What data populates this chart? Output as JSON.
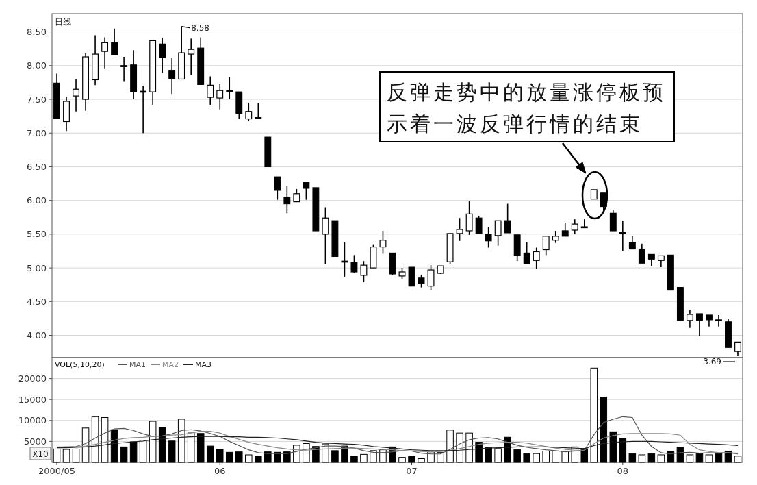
{
  "chart_data": [
    {
      "type": "candlestick",
      "title": "日线",
      "categories": [
        "2000/05",
        null,
        null,
        null,
        null,
        null,
        null,
        null,
        null,
        null,
        null,
        null,
        null,
        null,
        null,
        null,
        null,
        "06",
        null,
        null,
        null,
        null,
        null,
        null,
        null,
        null,
        null,
        null,
        null,
        null,
        null,
        null,
        null,
        null,
        null,
        null,
        null,
        "07",
        null,
        null,
        null,
        null,
        null,
        null,
        null,
        null,
        null,
        null,
        null,
        null,
        null,
        null,
        null,
        null,
        null,
        null,
        null,
        null,
        null,
        "08",
        null,
        null,
        null,
        null,
        null,
        null,
        null,
        null,
        null,
        null,
        null,
        null
      ],
      "ohlc": [
        [
          7.74,
          7.88,
          7.22,
          7.22
        ],
        [
          7.17,
          7.53,
          7.03,
          7.47
        ],
        [
          7.55,
          7.8,
          7.32,
          7.65
        ],
        [
          7.5,
          8.18,
          7.33,
          8.13
        ],
        [
          7.79,
          8.45,
          7.71,
          8.17
        ],
        [
          8.21,
          8.42,
          7.96,
          8.34
        ],
        [
          8.34,
          8.55,
          8.16,
          8.16
        ],
        [
          8.0,
          8.13,
          7.77,
          7.99
        ],
        [
          8.01,
          8.23,
          7.5,
          7.61
        ],
        [
          7.62,
          7.7,
          7.0,
          7.61
        ],
        [
          7.61,
          8.37,
          7.42,
          8.37
        ],
        [
          8.32,
          8.41,
          7.89,
          8.12
        ],
        [
          7.93,
          8.12,
          7.58,
          7.81
        ],
        [
          7.8,
          8.58,
          7.8,
          8.19
        ],
        [
          8.17,
          8.4,
          7.86,
          8.24
        ],
        [
          8.26,
          8.42,
          7.72,
          7.72
        ],
        [
          7.53,
          7.84,
          7.42,
          7.71
        ],
        [
          7.52,
          7.73,
          7.35,
          7.63
        ],
        [
          7.63,
          7.83,
          7.5,
          7.62
        ],
        [
          7.61,
          7.61,
          7.21,
          7.29
        ],
        [
          7.21,
          7.45,
          7.18,
          7.32
        ],
        [
          7.23,
          7.44,
          7.22,
          7.22
        ],
        [
          6.94,
          6.94,
          6.5,
          6.5
        ],
        [
          6.35,
          6.35,
          6.01,
          6.15
        ],
        [
          6.05,
          6.21,
          5.81,
          5.95
        ],
        [
          5.98,
          6.17,
          5.98,
          6.1
        ],
        [
          6.27,
          6.27,
          6.01,
          6.18
        ],
        [
          6.19,
          6.19,
          5.55,
          5.55
        ],
        [
          5.5,
          5.9,
          5.06,
          5.74
        ],
        [
          5.7,
          5.7,
          5.17,
          5.17
        ],
        [
          5.1,
          5.38,
          4.87,
          5.09
        ],
        [
          5.08,
          5.19,
          4.93,
          4.94
        ],
        [
          4.89,
          5.1,
          4.79,
          5.04
        ],
        [
          5.0,
          5.35,
          5.0,
          5.31
        ],
        [
          5.31,
          5.55,
          5.21,
          5.41
        ],
        [
          5.22,
          5.22,
          4.89,
          4.91
        ],
        [
          4.88,
          5.0,
          4.84,
          4.94
        ],
        [
          5.01,
          5.01,
          4.73,
          4.73
        ],
        [
          4.85,
          4.9,
          4.71,
          4.77
        ],
        [
          4.73,
          5.04,
          4.67,
          4.97
        ],
        [
          4.92,
          5.03,
          4.91,
          5.03
        ],
        [
          5.09,
          5.51,
          5.06,
          5.51
        ],
        [
          5.51,
          5.74,
          5.4,
          5.57
        ],
        [
          5.55,
          5.99,
          5.49,
          5.8
        ],
        [
          5.74,
          5.77,
          5.51,
          5.51
        ],
        [
          5.5,
          5.6,
          5.3,
          5.4
        ],
        [
          5.48,
          5.7,
          5.33,
          5.7
        ],
        [
          5.7,
          5.95,
          5.52,
          5.52
        ],
        [
          5.49,
          5.49,
          5.1,
          5.18
        ],
        [
          5.22,
          5.38,
          5.06,
          5.06
        ],
        [
          5.11,
          5.3,
          4.99,
          5.24
        ],
        [
          5.27,
          5.47,
          5.19,
          5.47
        ],
        [
          5.41,
          5.55,
          5.37,
          5.47
        ],
        [
          5.55,
          5.67,
          5.47,
          5.47
        ],
        [
          5.56,
          5.72,
          5.5,
          5.65
        ],
        [
          5.61,
          5.72,
          5.6,
          5.6
        ],
        [
          6.02,
          6.16,
          6.02,
          6.16
        ],
        [
          6.11,
          6.11,
          5.82,
          5.91
        ],
        [
          5.81,
          5.86,
          5.55,
          5.55
        ],
        [
          5.53,
          5.7,
          5.25,
          5.52
        ],
        [
          5.38,
          5.47,
          5.28,
          5.28
        ],
        [
          5.28,
          5.36,
          5.07,
          5.07
        ],
        [
          5.2,
          5.2,
          5.03,
          5.13
        ],
        [
          5.11,
          5.18,
          5.01,
          5.18
        ],
        [
          5.19,
          5.19,
          4.67,
          4.67
        ],
        [
          4.71,
          4.71,
          4.22,
          4.22
        ],
        [
          4.22,
          4.38,
          4.11,
          4.31
        ],
        [
          4.32,
          4.32,
          3.99,
          4.22
        ],
        [
          4.3,
          4.3,
          4.13,
          4.23
        ],
        [
          4.23,
          4.3,
          4.13,
          4.22
        ],
        [
          4.2,
          4.25,
          3.82,
          3.82
        ],
        [
          3.76,
          3.9,
          3.69,
          3.9
        ]
      ],
      "ylim": [
        3.67,
        8.77
      ],
      "yticks": [
        {
          "value": 4,
          "label": "4.00"
        },
        {
          "value": 4.5,
          "label": "4.50"
        },
        {
          "value": 5,
          "label": "5.00"
        },
        {
          "value": 5.5,
          "label": "5.50"
        },
        {
          "value": 6,
          "label": "6.00"
        },
        {
          "value": 6.5,
          "label": "6.50"
        },
        {
          "value": 7,
          "label": "7.00"
        },
        {
          "value": 7.5,
          "label": "7.50"
        },
        {
          "value": 8,
          "label": "8.00"
        },
        {
          "value": 8.5,
          "label": "8.50"
        }
      ],
      "grid": "y",
      "tick_labels": "y",
      "annotations": [
        "8.58",
        "3.69",
        "反弹走势中的放量涨停板预示着一波反弹行情的结束"
      ]
    },
    {
      "type": "bar",
      "categories": [
        "2000/05",
        null,
        null,
        null,
        null,
        null,
        null,
        null,
        null,
        null,
        null,
        null,
        null,
        null,
        null,
        null,
        null,
        "06",
        null,
        null,
        null,
        null,
        null,
        null,
        null,
        null,
        null,
        null,
        null,
        null,
        null,
        null,
        null,
        null,
        null,
        null,
        null,
        "07",
        null,
        null,
        null,
        null,
        null,
        null,
        null,
        null,
        null,
        null,
        null,
        null,
        null,
        null,
        null,
        null,
        null,
        null,
        null,
        null,
        null,
        "08",
        null,
        null,
        null,
        null,
        null,
        null,
        null,
        null,
        null,
        null,
        null,
        null
      ],
      "series": [
        {
          "type": "bar",
          "values": [
            3200,
            3100,
            3200,
            8200,
            10900,
            10700,
            7800,
            3700,
            4900,
            5300,
            9800,
            8400,
            5100,
            10300,
            7200,
            6900,
            3900,
            3100,
            2400,
            2500,
            1800,
            1500,
            2500,
            2400,
            2500,
            4100,
            4500,
            3800,
            4400,
            2800,
            3900,
            1500,
            1900,
            2800,
            3000,
            3700,
            1200,
            1400,
            900,
            2500,
            2400,
            7700,
            7000,
            7000,
            4800,
            3500,
            3300,
            6000,
            3000,
            2100,
            2100,
            2700,
            2700,
            2700,
            3700,
            3300,
            22500,
            15600,
            7300,
            5800,
            2100,
            1800,
            2100,
            1800,
            2700,
            3600,
            1800,
            2100,
            1800,
            2100,
            2700,
            1500
          ],
          "colors": [
            "#ffffff",
            "#ffffff",
            "#ffffff",
            "#ffffff",
            "#ffffff",
            "#ffffff",
            "#000000",
            "#000000",
            "#000000",
            "#ffffff",
            "#ffffff",
            "#000000",
            "#000000",
            "#ffffff",
            "#ffffff",
            "#000000",
            "#000000",
            "#000000",
            "#000000",
            "#000000",
            "#ffffff",
            "#000000",
            "#000000",
            "#000000",
            "#000000",
            "#ffffff",
            "#ffffff",
            "#000000",
            "#ffffff",
            "#000000",
            "#000000",
            "#000000",
            "#ffffff",
            "#ffffff",
            "#ffffff",
            "#000000",
            "#ffffff",
            "#000000",
            "#ffffff",
            "#ffffff",
            "#ffffff",
            "#ffffff",
            "#ffffff",
            "#ffffff",
            "#000000",
            "#000000",
            "#ffffff",
            "#000000",
            "#000000",
            "#000000",
            "#ffffff",
            "#ffffff",
            "#ffffff",
            "#ffffff",
            "#ffffff",
            "#000000",
            "#ffffff",
            "#000000",
            "#000000",
            "#000000",
            "#000000",
            "#ffffff",
            "#000000",
            "#ffffff",
            "#000000",
            "#000000",
            "#ffffff",
            "#000000",
            "#ffffff",
            "#000000",
            "#000000",
            "#ffffff"
          ]
        },
        {
          "type": "line",
          "name": "MA1",
          "color": "#555555",
          "values": [
            3600,
            3700,
            3800,
            4500,
            5800,
            7000,
            8000,
            8100,
            7600,
            6800,
            6200,
            6300,
            6800,
            7600,
            7800,
            7500,
            6900,
            6200,
            5000,
            4000,
            3000,
            2300,
            2100,
            2100,
            2100,
            2600,
            3100,
            3500,
            3900,
            3900,
            3800,
            3400,
            2800,
            2400,
            2300,
            2500,
            2800,
            2700,
            2200,
            2000,
            2000,
            3100,
            4400,
            5400,
            5800,
            5900,
            5600,
            4800,
            4100,
            3600,
            3300,
            3000,
            2800,
            2500,
            2700,
            2900,
            6600,
            9500,
            10300,
            10900,
            10700,
            6500,
            3800,
            2300,
            2000,
            2300,
            2400,
            2200,
            2300,
            2200,
            2300,
            2000
          ]
        },
        {
          "type": "line",
          "name": "MA2",
          "color": "#888888",
          "values": [
            3700,
            3700,
            3700,
            3900,
            4300,
            4800,
            5300,
            5700,
            5900,
            6000,
            6200,
            6300,
            6500,
            6600,
            7000,
            7400,
            7400,
            7000,
            6200,
            5500,
            4800,
            4300,
            3900,
            3500,
            3200,
            3000,
            2900,
            3100,
            3200,
            3300,
            3400,
            3400,
            3300,
            3200,
            3100,
            3000,
            2800,
            2700,
            2600,
            2500,
            2600,
            2900,
            3300,
            3800,
            4300,
            4600,
            4700,
            4800,
            4800,
            4600,
            4200,
            3800,
            3400,
            3100,
            2900,
            2900,
            4400,
            5800,
            6400,
            6800,
            6900,
            6900,
            6900,
            6900,
            6800,
            6500,
            4300,
            3000,
            2600,
            2300,
            2300,
            2200
          ]
        },
        {
          "type": "line",
          "name": "MA3",
          "color": "#222222",
          "values": [
            3500,
            3500,
            3600,
            3700,
            3900,
            4200,
            4500,
            4700,
            4900,
            5100,
            5400,
            5600,
            5800,
            6000,
            6100,
            6200,
            6200,
            6200,
            6100,
            6100,
            6000,
            6000,
            5900,
            5800,
            5600,
            5400,
            5100,
            4800,
            4600,
            4500,
            4400,
            4300,
            4100,
            3800,
            3600,
            3400,
            3200,
            3000,
            2900,
            2800,
            2800,
            2800,
            2900,
            3100,
            3200,
            3400,
            3500,
            3600,
            3700,
            3700,
            3700,
            3700,
            3600,
            3500,
            3400,
            3300,
            4000,
            4500,
            4700,
            4900,
            5000,
            5000,
            5000,
            4900,
            4800,
            4700,
            4600,
            4500,
            4400,
            4300,
            4200,
            4000
          ]
        }
      ],
      "ylim": [
        0,
        25000
      ],
      "yticks": [
        5000,
        10000,
        15000,
        20000
      ],
      "grid": "y",
      "legend": "top left",
      "legend_title": "VOL(5,10,20)",
      "annotations": [
        "X10"
      ]
    }
  ]
}
